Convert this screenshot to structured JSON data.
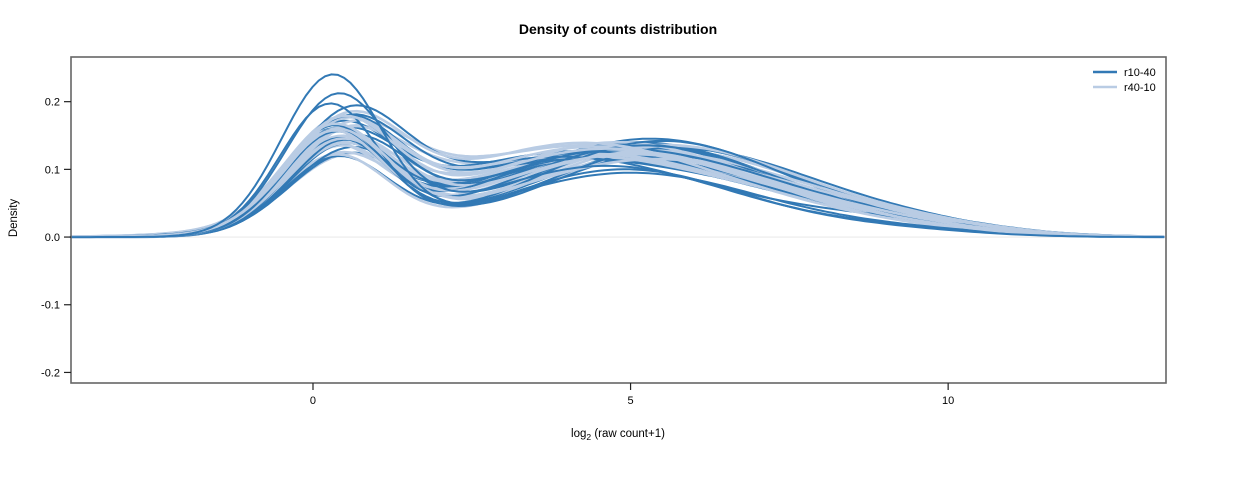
{
  "chart_data": {
    "type": "line",
    "subtype": "density-curve-ensemble",
    "title": "Density of counts distribution",
    "ylabel": "Density",
    "xlabel_parts": {
      "prefix": "log",
      "sub": "2",
      "suffix": " (raw count+1)"
    },
    "x_ticks": [
      {
        "v": 0,
        "label": "0"
      },
      {
        "v": 5,
        "label": "5"
      },
      {
        "v": 10,
        "label": "10"
      }
    ],
    "y_ticks": [
      {
        "v": -0.2,
        "label": "-0.2"
      },
      {
        "v": -0.1,
        "label": "-0.1"
      },
      {
        "v": 0.0,
        "label": "0.0"
      },
      {
        "v": 0.1,
        "label": "0.1"
      },
      {
        "v": 0.2,
        "label": "0.2"
      }
    ],
    "xlim": [
      -3.81,
      13.43
    ],
    "ylim": [
      -0.2156,
      0.266
    ],
    "grid": false,
    "legend_position": "topright",
    "colors": {
      "frame": "#666666",
      "ticks": "#222222",
      "zero_baseline": "#ebebeb",
      "background": "#ffffff"
    },
    "curve_model": "each curve = sum of three gaussian bumps; params per curve: [h1,c1,s1,h2,c2,s2,h3,c3,s3] with h=peak density height, c=center (log2 raw count+1), s=sd",
    "series": [
      {
        "name": "r10-40",
        "color": "#3279b5",
        "line_width": 2.0,
        "curves": [
          [
            0.235,
            0.3,
            0.8,
            0.1,
            4.9,
            1.9,
            0.01,
            9.0,
            1.4
          ],
          [
            0.201,
            0.38,
            0.82,
            0.105,
            4.6,
            2.0,
            0.012,
            8.8,
            1.5
          ],
          [
            0.19,
            0.25,
            0.78,
            0.095,
            5.0,
            2.1,
            0.008,
            9.4,
            1.4
          ],
          [
            0.158,
            0.45,
            0.85,
            0.128,
            4.8,
            2.25,
            0.018,
            8.2,
            1.6
          ],
          [
            0.155,
            0.3,
            0.8,
            0.135,
            5.2,
            2.15,
            0.01,
            9.0,
            1.5
          ],
          [
            0.152,
            0.55,
            0.88,
            0.118,
            3.9,
            2.3,
            0.022,
            8.8,
            1.8
          ],
          [
            0.15,
            0.35,
            0.82,
            0.142,
            5.5,
            2.05,
            0.008,
            9.6,
            1.3
          ],
          [
            0.148,
            0.48,
            0.86,
            0.125,
            4.4,
            2.35,
            0.015,
            8.4,
            1.7
          ],
          [
            0.145,
            0.28,
            0.79,
            0.138,
            5.0,
            2.2,
            0.012,
            9.2,
            1.5
          ],
          [
            0.143,
            0.52,
            0.9,
            0.112,
            4.1,
            2.4,
            0.025,
            8.0,
            1.9
          ],
          [
            0.141,
            0.4,
            0.83,
            0.132,
            5.7,
            2.1,
            0.01,
            9.8,
            1.4
          ],
          [
            0.139,
            0.33,
            0.81,
            0.12,
            4.6,
            2.28,
            0.018,
            8.7,
            1.6
          ],
          [
            0.137,
            0.58,
            0.92,
            0.145,
            5.3,
            2.18,
            0.008,
            9.1,
            1.5
          ],
          [
            0.135,
            0.26,
            0.77,
            0.115,
            4.3,
            2.32,
            0.02,
            8.3,
            1.8
          ],
          [
            0.133,
            0.5,
            0.87,
            0.13,
            5.8,
            2.12,
            0.012,
            9.5,
            1.4
          ],
          [
            0.131,
            0.36,
            0.84,
            0.122,
            4.0,
            2.42,
            0.028,
            7.8,
            2.0
          ],
          [
            0.128,
            0.44,
            0.86,
            0.14,
            5.1,
            2.22,
            0.01,
            9.3,
            1.5
          ],
          [
            0.125,
            0.31,
            0.8,
            0.118,
            4.7,
            2.36,
            0.016,
            8.5,
            1.7
          ],
          [
            0.122,
            0.56,
            0.91,
            0.135,
            5.4,
            2.15,
            0.014,
            8.9,
            1.6
          ],
          [
            0.118,
            0.42,
            0.85,
            0.11,
            3.8,
            2.45,
            0.03,
            7.6,
            2.0
          ],
          [
            0.112,
            0.37,
            0.83,
            0.128,
            5.6,
            2.2,
            0.012,
            9.7,
            1.4
          ],
          [
            0.105,
            0.48,
            0.88,
            0.12,
            4.9,
            2.3,
            0.02,
            8.1,
            1.8
          ]
        ]
      },
      {
        "name": "r40-10",
        "color": "#b9cce4",
        "line_width": 2.6,
        "curves": [
          [
            0.155,
            0.42,
            0.86,
            0.13,
            4.6,
            2.25,
            0.015,
            8.6,
            1.6
          ],
          [
            0.152,
            0.3,
            0.82,
            0.122,
            5.0,
            2.3,
            0.012,
            9.0,
            1.5
          ],
          [
            0.15,
            0.52,
            0.9,
            0.138,
            4.2,
            2.2,
            0.018,
            8.2,
            1.7
          ],
          [
            0.148,
            0.35,
            0.84,
            0.115,
            5.4,
            2.35,
            0.01,
            9.4,
            1.4
          ],
          [
            0.146,
            0.46,
            0.87,
            0.132,
            4.4,
            2.28,
            0.02,
            8.4,
            1.8
          ],
          [
            0.144,
            0.28,
            0.8,
            0.125,
            5.2,
            2.32,
            0.014,
            8.8,
            1.6
          ],
          [
            0.142,
            0.55,
            0.92,
            0.14,
            4.8,
            2.18,
            0.008,
            9.2,
            1.4
          ],
          [
            0.14,
            0.38,
            0.85,
            0.118,
            4.0,
            2.4,
            0.024,
            8.0,
            1.9
          ],
          [
            0.138,
            0.44,
            0.88,
            0.135,
            5.6,
            2.15,
            0.012,
            9.6,
            1.4
          ],
          [
            0.136,
            0.32,
            0.83,
            0.12,
            4.5,
            2.34,
            0.018,
            8.5,
            1.7
          ],
          [
            0.134,
            0.5,
            0.9,
            0.128,
            5.1,
            2.24,
            0.015,
            8.9,
            1.6
          ],
          [
            0.132,
            0.26,
            0.79,
            0.112,
            4.3,
            2.38,
            0.022,
            7.9,
            1.9
          ],
          [
            0.13,
            0.47,
            0.89,
            0.136,
            5.5,
            2.16,
            0.01,
            9.5,
            1.4
          ],
          [
            0.128,
            0.36,
            0.84,
            0.124,
            4.7,
            2.3,
            0.016,
            8.6,
            1.7
          ],
          [
            0.126,
            0.54,
            0.93,
            0.13,
            4.1,
            2.42,
            0.026,
            7.7,
            2.0
          ],
          [
            0.124,
            0.4,
            0.86,
            0.118,
            5.3,
            2.26,
            0.012,
            9.1,
            1.5
          ],
          [
            0.122,
            0.29,
            0.81,
            0.132,
            4.9,
            2.22,
            0.014,
            8.7,
            1.6
          ],
          [
            0.119,
            0.51,
            0.91,
            0.115,
            3.9,
            2.44,
            0.028,
            7.8,
            2.0
          ],
          [
            0.116,
            0.34,
            0.83,
            0.126,
            5.7,
            2.18,
            0.01,
            9.8,
            1.3
          ],
          [
            0.112,
            0.45,
            0.88,
            0.121,
            4.4,
            2.36,
            0.02,
            8.3,
            1.8
          ],
          [
            0.108,
            0.39,
            0.85,
            0.129,
            5.0,
            2.28,
            0.016,
            9.0,
            1.5
          ],
          [
            0.098,
            0.48,
            0.9,
            0.117,
            4.6,
            2.33,
            0.018,
            8.8,
            1.7
          ]
        ]
      }
    ]
  }
}
